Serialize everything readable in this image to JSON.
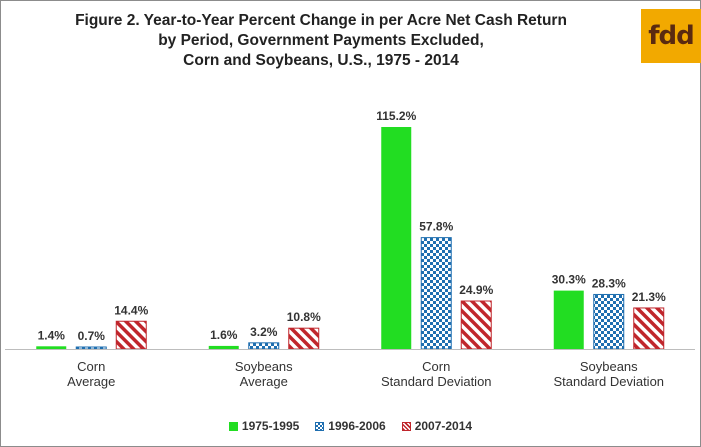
{
  "title_lines": [
    "Figure 2. Year-to-Year  Percent Change in per Acre Net Cash Return",
    "by Period, Government Payments Excluded,",
    "Corn and Soybeans, U.S., 1975 - 2014"
  ],
  "logo_text": "fdd",
  "colors": {
    "series1": "#22dd22",
    "series2": "#1f6fb0",
    "series3": "#c0262c"
  },
  "chart_data": {
    "type": "bar",
    "title": "Figure 2. Year-to-Year  Percent Change in per Acre Net Cash Return by Period, Government Payments Excluded, Corn and Soybeans, U.S., 1975 - 2014",
    "categories": [
      [
        "Corn",
        "Average"
      ],
      [
        "Soybeans",
        "Average"
      ],
      [
        "Corn",
        "Standard Deviation"
      ],
      [
        "Soybeans",
        "Standard Deviation"
      ]
    ],
    "series": [
      {
        "name": "1975-1995",
        "values": [
          1.4,
          1.6,
          115.2,
          30.3
        ],
        "labels": [
          "1.4%",
          "1.6%",
          "115.2%",
          "30.3%"
        ],
        "pattern": "solid"
      },
      {
        "name": "1996-2006",
        "values": [
          0.7,
          3.2,
          57.8,
          28.3
        ],
        "labels": [
          "0.7%",
          "3.2%",
          "57.8%",
          "28.3%"
        ],
        "pattern": "checker"
      },
      {
        "name": "2007-2014",
        "values": [
          14.4,
          10.8,
          24.9,
          21.3
        ],
        "labels": [
          "14.4%",
          "10.8%",
          "24.9%",
          "21.3%"
        ],
        "pattern": "diagonal"
      }
    ],
    "ylim": [
      0,
      115.2
    ],
    "legend_position": "bottom",
    "grid": false,
    "xlabel": "",
    "ylabel": ""
  }
}
